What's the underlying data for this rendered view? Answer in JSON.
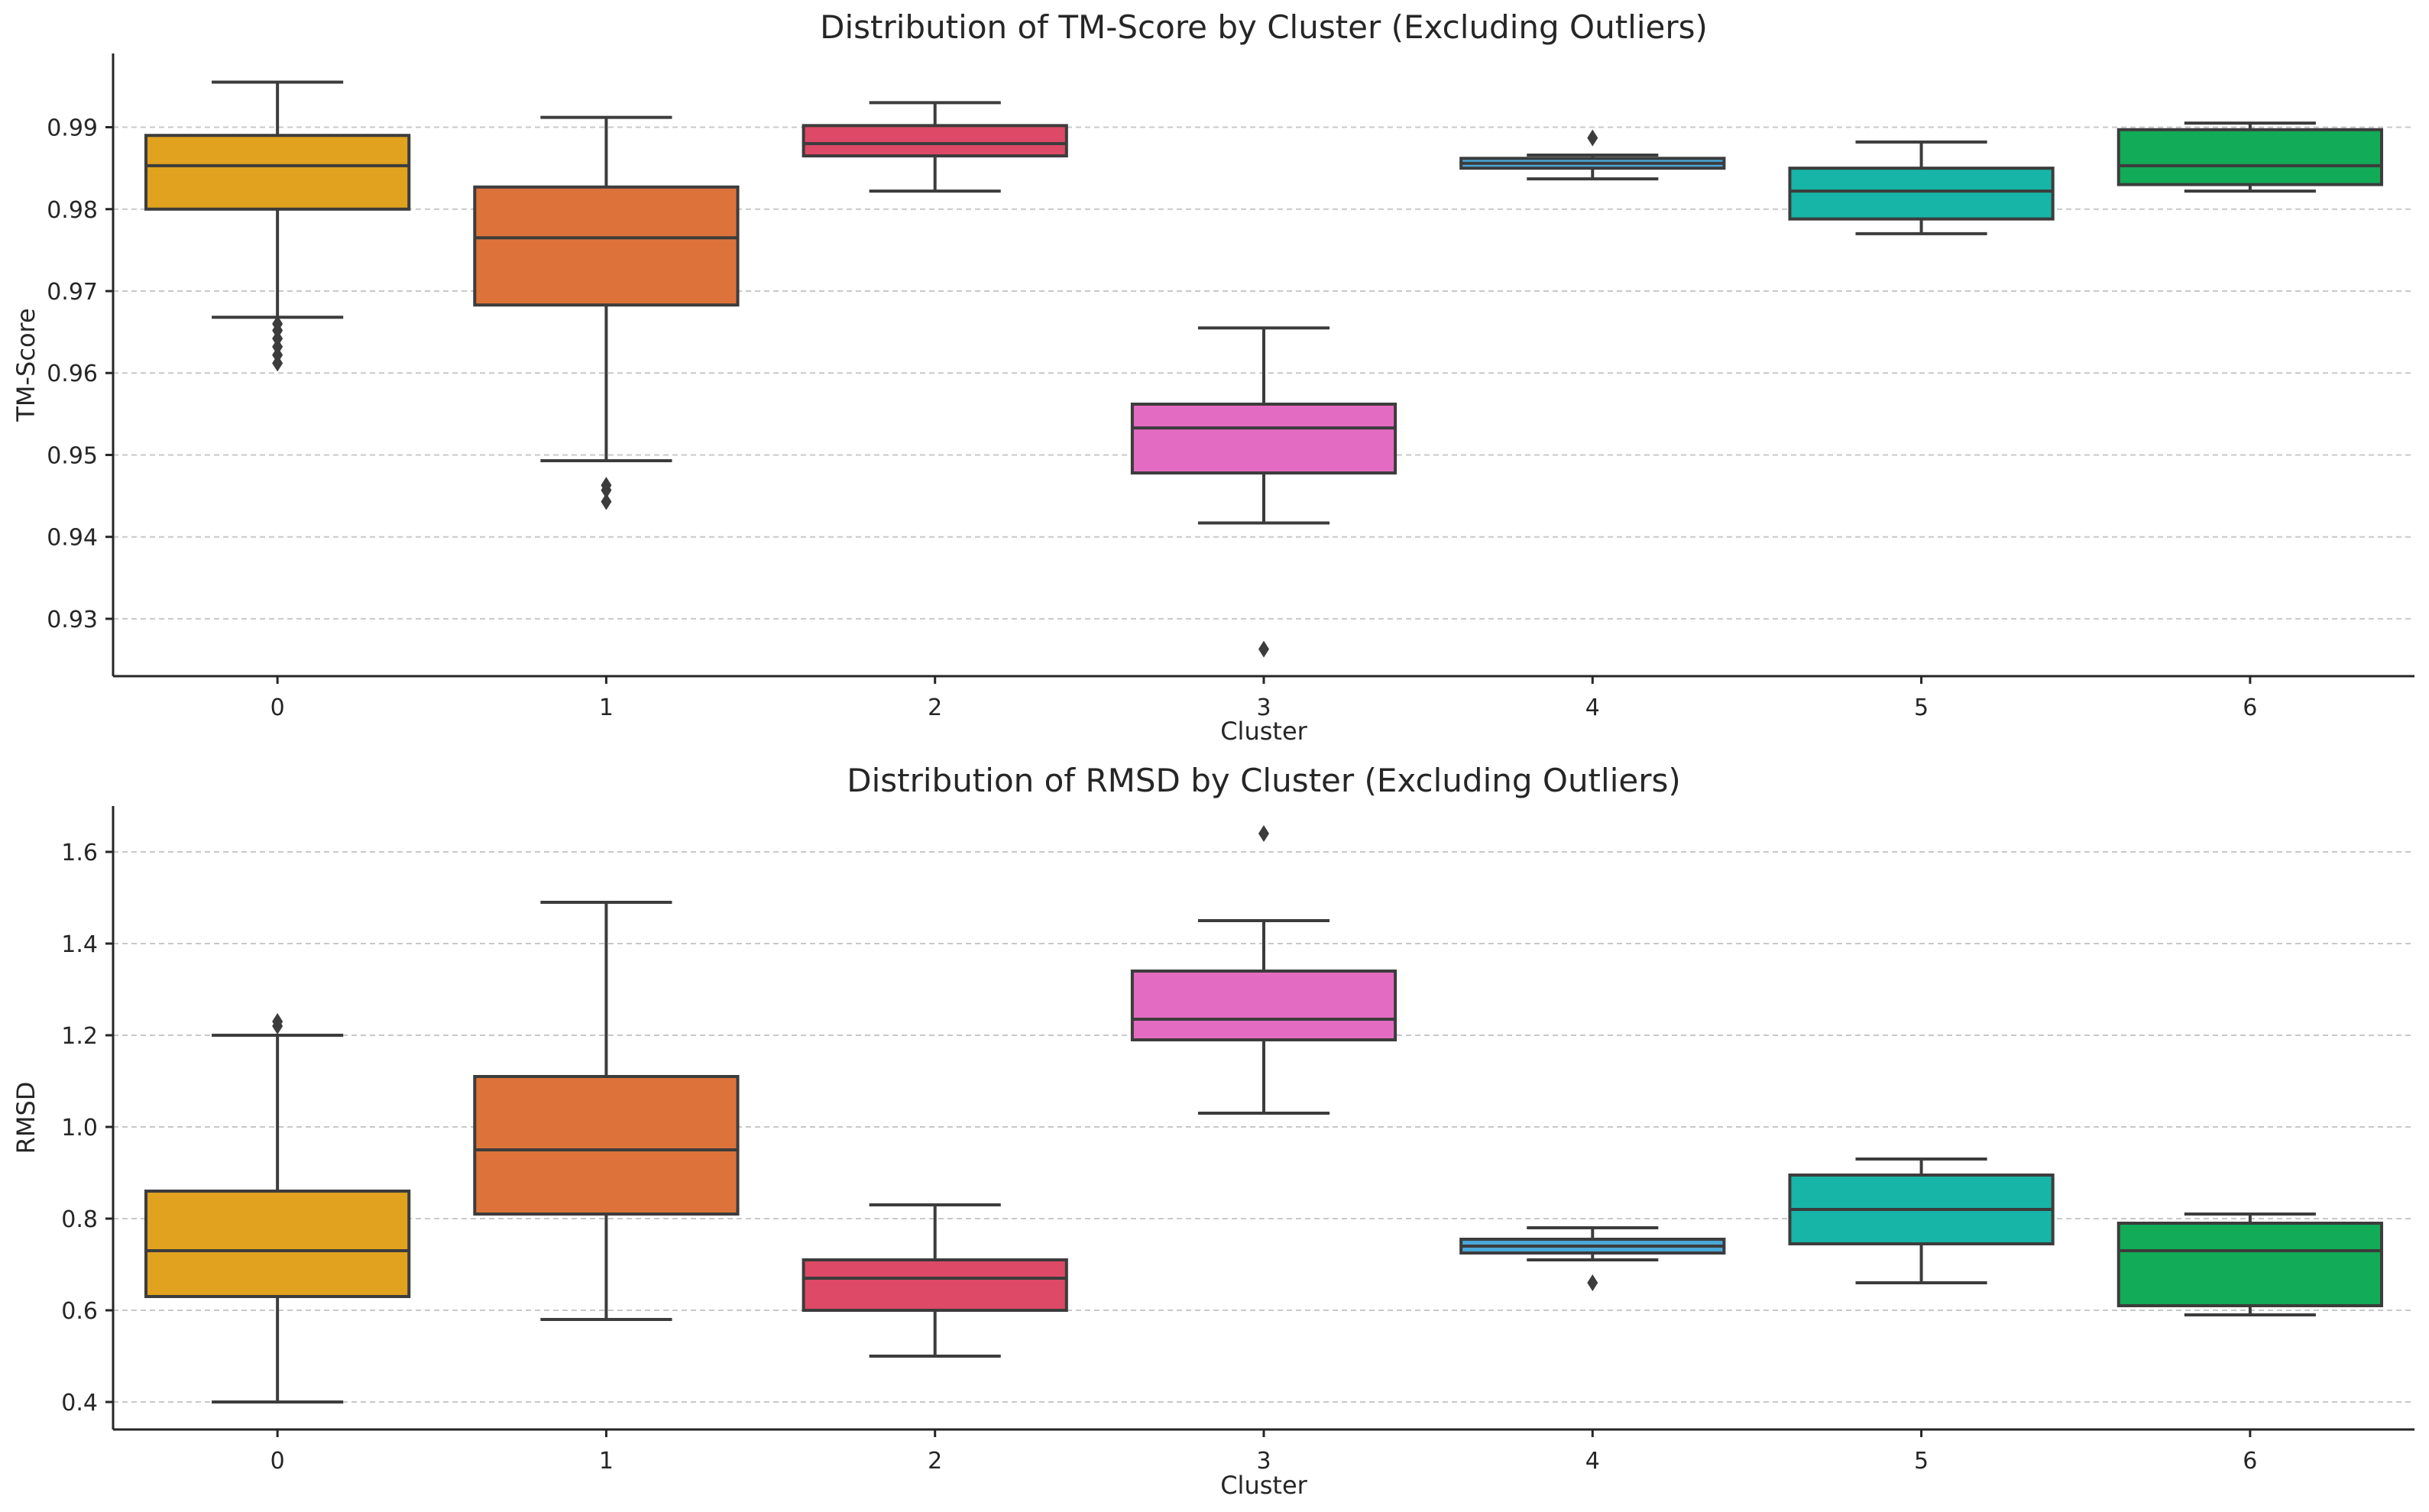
{
  "chart_data": [
    {
      "type": "box",
      "title": "Distribution of TM-Score by Cluster (Excluding Outliers)",
      "xlabel": "Cluster",
      "ylabel": "TM-Score",
      "categories": [
        "0",
        "1",
        "2",
        "3",
        "4",
        "5",
        "6"
      ],
      "ylim": [
        0.923,
        0.999
      ],
      "yticks": [
        0.93,
        0.94,
        0.95,
        0.96,
        0.97,
        0.98,
        0.99
      ],
      "ytick_labels": [
        "0.93",
        "0.94",
        "0.95",
        "0.96",
        "0.97",
        "0.98",
        "0.99"
      ],
      "grid": true,
      "boxes": [
        {
          "category": "0",
          "color": "#e0a21f",
          "whisker_low": 0.9668,
          "q1": 0.98,
          "median": 0.9853,
          "q3": 0.989,
          "whisker_high": 0.9955,
          "outliers": [
            0.9612,
            0.9622,
            0.9632,
            0.9642,
            0.9652,
            0.966
          ]
        },
        {
          "category": "1",
          "color": "#dd733a",
          "whisker_low": 0.9493,
          "q1": 0.9683,
          "median": 0.9765,
          "q3": 0.9827,
          "whisker_high": 0.9912,
          "outliers": [
            0.9443,
            0.9457,
            0.9463
          ]
        },
        {
          "category": "2",
          "color": "#dd4966",
          "whisker_low": 0.9822,
          "q1": 0.9865,
          "median": 0.988,
          "q3": 0.9902,
          "whisker_high": 0.993,
          "outliers": []
        },
        {
          "category": "3",
          "color": "#e36cc2",
          "whisker_low": 0.9417,
          "q1": 0.9478,
          "median": 0.9533,
          "q3": 0.9562,
          "whisker_high": 0.9655,
          "outliers": [
            0.9263
          ]
        },
        {
          "category": "4",
          "color": "#4aa8d9",
          "whisker_low": 0.9837,
          "q1": 0.985,
          "median": 0.9856,
          "q3": 0.9862,
          "whisker_high": 0.9866,
          "outliers": [
            0.9887
          ]
        },
        {
          "category": "5",
          "color": "#16b5a7",
          "whisker_low": 0.977,
          "q1": 0.9788,
          "median": 0.9822,
          "q3": 0.985,
          "whisker_high": 0.9882,
          "outliers": []
        },
        {
          "category": "6",
          "color": "#12ab57",
          "whisker_low": 0.9822,
          "q1": 0.983,
          "median": 0.9853,
          "q3": 0.9897,
          "whisker_high": 0.9905,
          "outliers": []
        }
      ]
    },
    {
      "type": "box",
      "title": "Distribution of RMSD by Cluster (Excluding Outliers)",
      "xlabel": "Cluster",
      "ylabel": "RMSD",
      "categories": [
        "0",
        "1",
        "2",
        "3",
        "4",
        "5",
        "6"
      ],
      "ylim": [
        0.34,
        1.7
      ],
      "yticks": [
        0.4,
        0.6,
        0.8,
        1.0,
        1.2,
        1.4,
        1.6
      ],
      "ytick_labels": [
        "0.4",
        "0.6",
        "0.8",
        "1.0",
        "1.2",
        "1.4",
        "1.6"
      ],
      "grid": true,
      "boxes": [
        {
          "category": "0",
          "color": "#e0a21f",
          "whisker_low": 0.4,
          "q1": 0.63,
          "median": 0.73,
          "q3": 0.86,
          "whisker_high": 1.2,
          "outliers": [
            1.22,
            1.23
          ]
        },
        {
          "category": "1",
          "color": "#dd733a",
          "whisker_low": 0.58,
          "q1": 0.81,
          "median": 0.95,
          "q3": 1.11,
          "whisker_high": 1.49,
          "outliers": []
        },
        {
          "category": "2",
          "color": "#dd4966",
          "whisker_low": 0.5,
          "q1": 0.6,
          "median": 0.67,
          "q3": 0.71,
          "whisker_high": 0.83,
          "outliers": []
        },
        {
          "category": "3",
          "color": "#e36cc2",
          "whisker_low": 1.03,
          "q1": 1.19,
          "median": 1.235,
          "q3": 1.34,
          "whisker_high": 1.45,
          "outliers": [
            1.64
          ]
        },
        {
          "category": "4",
          "color": "#4aa8d9",
          "whisker_low": 0.71,
          "q1": 0.725,
          "median": 0.74,
          "q3": 0.755,
          "whisker_high": 0.78,
          "outliers": [
            0.66
          ]
        },
        {
          "category": "5",
          "color": "#16b5a7",
          "whisker_low": 0.66,
          "q1": 0.745,
          "median": 0.82,
          "q3": 0.895,
          "whisker_high": 0.93,
          "outliers": []
        },
        {
          "category": "6",
          "color": "#12ab57",
          "whisker_low": 0.59,
          "q1": 0.61,
          "median": 0.73,
          "q3": 0.79,
          "whisker_high": 0.81,
          "outliers": []
        }
      ]
    }
  ]
}
